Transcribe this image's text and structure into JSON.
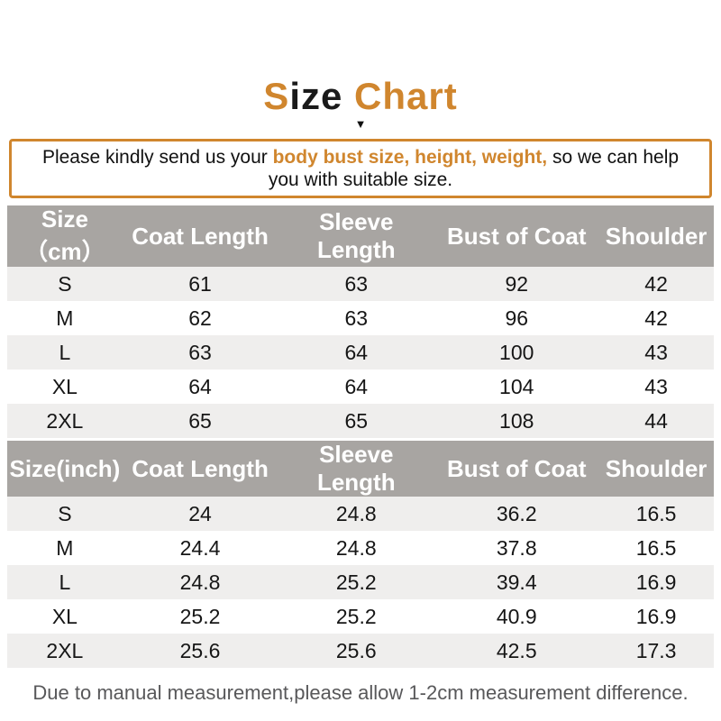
{
  "colors": {
    "accent": "#d0862e",
    "header_bg": "#a8a5a2",
    "row_alt": "#efeeed"
  },
  "page": {
    "title": {
      "part1_orange": "S",
      "part2_black": "ize ",
      "part3_orange": "Chart",
      "arrow_glyph": "▼"
    },
    "notice": {
      "before": "Please kindly send us your ",
      "highlight": "body bust size, height, weight,",
      "after": " so we can help you with suitable size."
    },
    "footer": "Due to manual measurement,please allow 1-2cm measurement difference."
  },
  "chart_data": [
    {
      "type": "table",
      "unit": "cm",
      "headers": [
        "Size（cm）",
        "Coat Length",
        "Sleeve Length",
        "Bust of Coat",
        "Shoulder"
      ],
      "rows": [
        [
          "S",
          "61",
          "63",
          "92",
          "42"
        ],
        [
          "M",
          "62",
          "63",
          "96",
          "42"
        ],
        [
          "L",
          "63",
          "64",
          "100",
          "43"
        ],
        [
          "XL",
          "64",
          "64",
          "104",
          "43"
        ],
        [
          "2XL",
          "65",
          "65",
          "108",
          "44"
        ]
      ]
    },
    {
      "type": "table",
      "unit": "inch",
      "headers": [
        "Size(inch)",
        "Coat Length",
        "Sleeve Length",
        "Bust of Coat",
        "Shoulder"
      ],
      "rows": [
        [
          "S",
          "24",
          "24.8",
          "36.2",
          "16.5"
        ],
        [
          "M",
          "24.4",
          "24.8",
          "37.8",
          "16.5"
        ],
        [
          "L",
          "24.8",
          "25.2",
          "39.4",
          "16.9"
        ],
        [
          "XL",
          "25.2",
          "25.2",
          "40.9",
          "16.9"
        ],
        [
          "2XL",
          "25.6",
          "25.6",
          "42.5",
          "17.3"
        ]
      ]
    }
  ]
}
